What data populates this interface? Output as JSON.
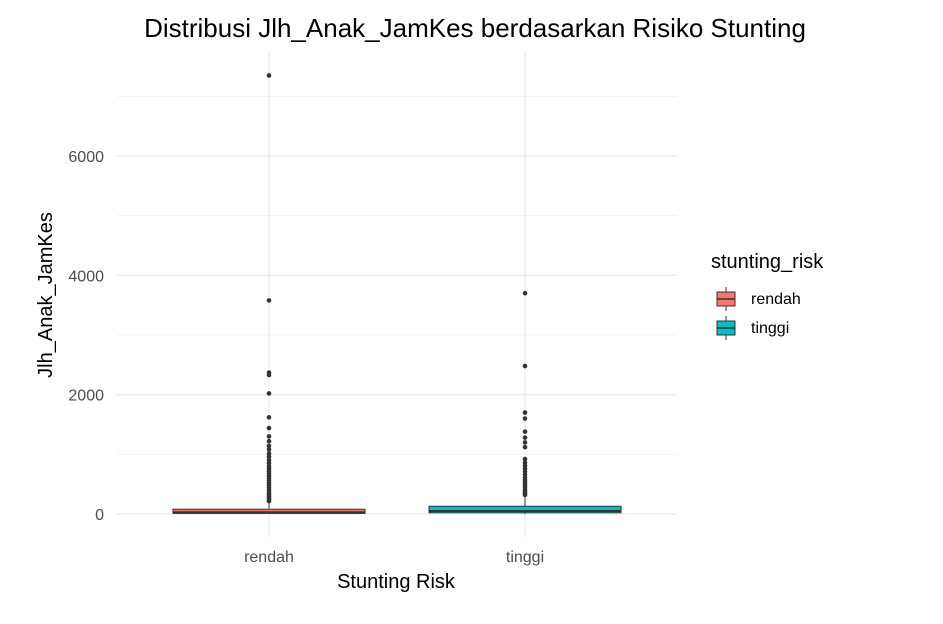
{
  "chart_data": {
    "type": "boxplot",
    "title": "Distribusi Jlh_Anak_JamKes berdasarkan Risiko Stunting",
    "xlabel": "Stunting Risk",
    "ylabel": "Jlh_Anak_JamKes",
    "ylim": [
      -400,
      7700
    ],
    "y_ticks": [
      0,
      2000,
      4000,
      6000
    ],
    "y_tick_labels": [
      "0",
      "2000",
      "4000",
      "6000"
    ],
    "categories": [
      "rendah",
      "tinggi"
    ],
    "grid": true,
    "legend": {
      "title": "stunting_risk",
      "position": "right"
    },
    "series": [
      {
        "name": "rendah",
        "color": "#F8766D",
        "q1": 10,
        "median": 30,
        "q3": 80,
        "whisker_low": 0,
        "whisker_high": 190,
        "outliers": [
          7350,
          3580,
          2370,
          2330,
          2020,
          1620,
          1440,
          1300,
          1220,
          1140,
          1080,
          1010,
          960,
          900,
          850,
          800,
          760,
          720,
          680,
          640,
          600,
          560,
          520,
          480,
          440,
          400,
          360,
          330,
          300,
          270,
          240,
          215
        ]
      },
      {
        "name": "tinggi",
        "color": "#00BFC4",
        "q1": 20,
        "median": 50,
        "q3": 130,
        "whisker_low": 0,
        "whisker_high": 290,
        "outliers": [
          3700,
          2480,
          1700,
          1600,
          1380,
          1280,
          1200,
          1120,
          920,
          860,
          810,
          760,
          710,
          660,
          610,
          570,
          530,
          490,
          450,
          410,
          380,
          350,
          320
        ]
      }
    ]
  }
}
